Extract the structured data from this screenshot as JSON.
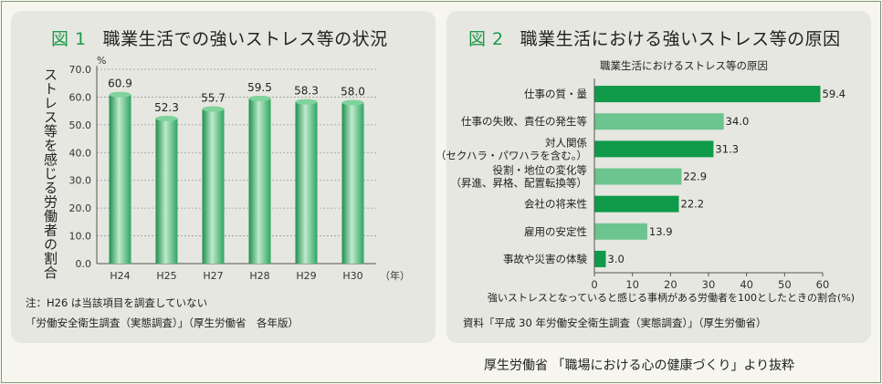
{
  "credit": "厚生労働省 「職場における心の健康づくり」より抜粋",
  "charts": [
    {
      "type": "bar",
      "fig_label": "図 1",
      "title": "職業生活での強いストレス等の状況",
      "ylabel": "ストレス等を感じる労働者の割合",
      "yunit": "%",
      "xunit": "（年）",
      "categories": [
        "H24",
        "H25",
        "H27",
        "H28",
        "H29",
        "H30"
      ],
      "values": [
        60.9,
        52.3,
        55.7,
        59.5,
        58.3,
        58.0
      ],
      "value_labels": [
        "60.9",
        "52.3",
        "55.7",
        "59.5",
        "58.3",
        "58.0"
      ],
      "ylim": [
        0,
        70
      ],
      "yticks": [
        "0.0",
        "10.0",
        "20.0",
        "30.0",
        "40.0",
        "50.0",
        "60.0",
        "70.0"
      ],
      "grid": true,
      "bar_color": "#3cae6c",
      "note": "注：H26 は当該項目を調査していない",
      "source": "「労働安全衛生調査（実態調査）」（厚生労働省　各年版）"
    },
    {
      "type": "bar",
      "orientation": "horizontal",
      "fig_label": "図 2",
      "title": "職業生活における強いストレス等の原因",
      "subtitle": "職業生活におけるストレス等の原因",
      "categories": [
        [
          "仕事の質・量"
        ],
        [
          "仕事の失敗、責任の発生等"
        ],
        [
          "対人関係",
          "（セクハラ・パワハラを含む。）"
        ],
        [
          "役割・地位の変化等",
          "（昇進、昇格、配置転換等）"
        ],
        [
          "会社の将来性"
        ],
        [
          "雇用の安定性"
        ],
        [
          "事故や災害の体験"
        ]
      ],
      "values": [
        59.4,
        34.0,
        31.3,
        22.9,
        22.2,
        13.9,
        3.0
      ],
      "value_labels": [
        "59.4",
        "34.0",
        "31.3",
        "22.9",
        "22.2",
        "13.9",
        "3.0"
      ],
      "bar_colors": [
        "#0f9a4a",
        "#6cc48e",
        "#0f9a4a",
        "#6cc48e",
        "#0f9a4a",
        "#6cc48e",
        "#0f9a4a"
      ],
      "xlim": [
        0,
        60
      ],
      "xticks": [
        "0",
        "10",
        "20",
        "30",
        "40",
        "50",
        "60"
      ],
      "xlabel": "強いストレスとなっていると感じる事柄がある労働者を100としたときの割合(%)",
      "source": "資料「平成 30 年労働安全衛生調査（実態調査）」（厚生労働省）"
    }
  ]
}
